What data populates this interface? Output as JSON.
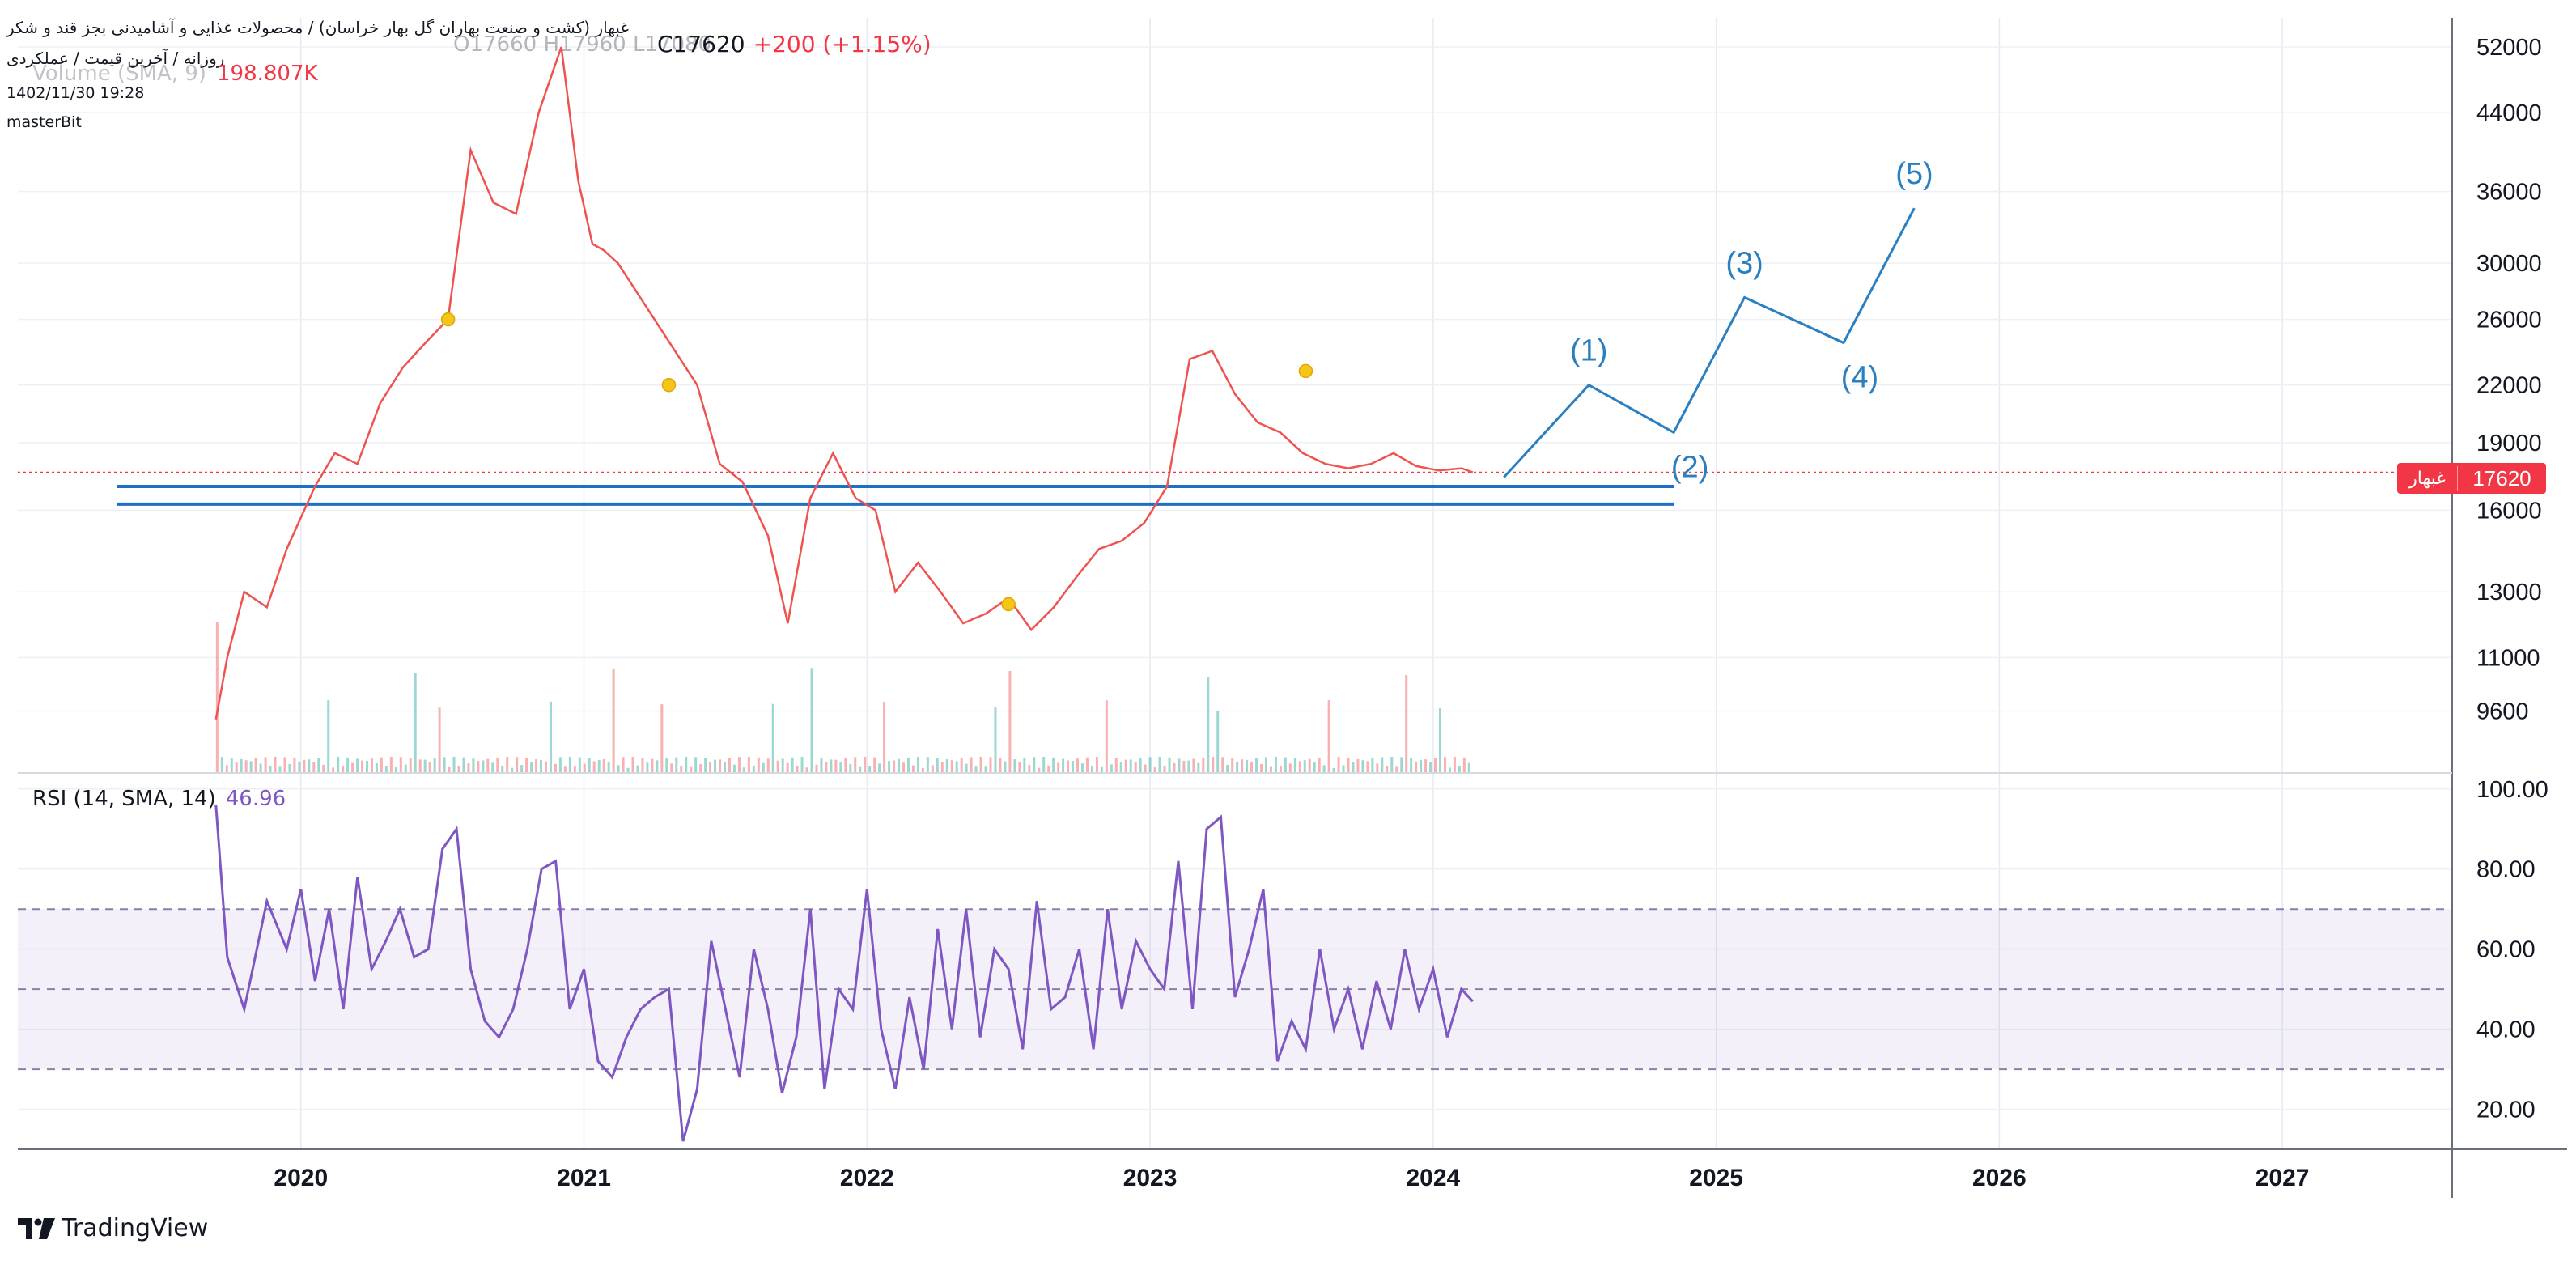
{
  "header": {
    "title": "غبهار (کشت و صنعت بهاران گل بهار خراسان) / محصولات غذایی و آشامیدنی بجز قند و شکر",
    "subtitle": "روزانه / آخرین قیمت / عملکردی",
    "datetime": "1402/11/30 19:28",
    "author": "masterBit",
    "ohlc_ghost": "O17660  H17960  L17080",
    "close_label": "C17620",
    "change": "+200 (+1.15%)",
    "volume_label": "Volume (SMA, 9)",
    "volume_value": "198.807K"
  },
  "price_tag": {
    "symbol": "غبهار",
    "value": "17620"
  },
  "rsi": {
    "label": "RSI (14, SMA, 14)",
    "value": "46.96"
  },
  "brand": {
    "name": "TradingView"
  },
  "colors": {
    "up": "#26a69a",
    "down": "#ef5350",
    "rsi": "#7e57c2",
    "wave": "#2a7fc1",
    "level": "#1e6fc6",
    "marker": "#f5c518",
    "price_line": "#f23645"
  },
  "chart_data": [
    {
      "type": "line",
      "title": "غبهار",
      "scale": "log",
      "x_ticks": [
        "2020",
        "2021",
        "2022",
        "2023",
        "2024",
        "2025",
        "2026",
        "2027"
      ],
      "y_ticks": [
        9600,
        11000,
        13000,
        16000,
        19000,
        22000,
        26000,
        30000,
        36000,
        44000,
        52000
      ],
      "ylim": [
        8200,
        56000
      ],
      "xlim": [
        2019.0,
        2027.6
      ],
      "series": [
        {
          "x": [
            2019.7,
            2019.74,
            2019.8,
            2019.88,
            2019.95,
            2020.05,
            2020.12,
            2020.2,
            2020.28,
            2020.36,
            2020.44,
            2020.52,
            2020.6,
            2020.68,
            2020.76,
            2020.84,
            2020.92,
            2020.98,
            2021.03,
            2021.07,
            2021.12,
            2021.4,
            2021.48,
            2021.56,
            2021.65,
            2021.72,
            2021.8,
            2021.88,
            2021.96,
            2022.03,
            2022.1,
            2022.18,
            2022.26,
            2022.34,
            2022.42,
            2022.5,
            2022.58,
            2022.66,
            2022.74,
            2022.82,
            2022.9,
            2022.98,
            2023.06,
            2023.14,
            2023.22,
            2023.3,
            2023.38,
            2023.46,
            2023.54,
            2023.62,
            2023.7,
            2023.78,
            2023.86,
            2023.94,
            2024.02,
            2024.1,
            2024.14
          ],
          "values": [
            9400,
            11000,
            13000,
            12500,
            14500,
            17000,
            18500,
            18000,
            21000,
            23000,
            24500,
            26000,
            40000,
            35000,
            34000,
            44000,
            52000,
            37000,
            31500,
            31000,
            30000,
            22000,
            18000,
            17200,
            15000,
            12000,
            16500,
            18500,
            16500,
            16000,
            13000,
            14000,
            13000,
            12000,
            12300,
            12800,
            11800,
            12500,
            13500,
            14500,
            14800,
            15500,
            17000,
            23500,
            24000,
            21500,
            20000,
            19500,
            18500,
            18000,
            17800,
            18000,
            18500,
            17900,
            17700,
            17800,
            17620
          ]
        }
      ],
      "annotations": {
        "wave_labels": [
          "(1)",
          "(2)",
          "(3)",
          "(4)",
          "(5)"
        ],
        "wave_points": [
          [
            2024.25,
            17400
          ],
          [
            2024.55,
            22000
          ],
          [
            2024.85,
            19500
          ],
          [
            2025.1,
            27500
          ],
          [
            2025.45,
            24500
          ],
          [
            2025.7,
            34500
          ]
        ],
        "support_levels": [
          17000,
          16250
        ],
        "support_x_range": [
          2019.35,
          2024.85
        ],
        "markers": [
          [
            2020.52,
            26000
          ],
          [
            2021.3,
            22000
          ],
          [
            2022.5,
            12600
          ],
          [
            2023.55,
            22800
          ]
        ],
        "last_price": 17620
      }
    },
    {
      "type": "line",
      "title": "RSI (14, SMA, 14)",
      "y_ticks": [
        20,
        40,
        60,
        80,
        100
      ],
      "ylim": [
        10,
        104
      ],
      "bands": [
        30,
        50,
        70
      ],
      "series": [
        {
          "name": "RSI",
          "x": [
            2019.7,
            2019.74,
            2019.8,
            2019.88,
            2019.95,
            2020.0,
            2020.05,
            2020.1,
            2020.15,
            2020.2,
            2020.25,
            2020.3,
            2020.35,
            2020.4,
            2020.45,
            2020.5,
            2020.55,
            2020.6,
            2020.65,
            2020.7,
            2020.75,
            2020.8,
            2020.85,
            2020.9,
            2020.95,
            2021.0,
            2021.05,
            2021.1,
            2021.15,
            2021.2,
            2021.25,
            2021.3,
            2021.35,
            2021.4,
            2021.45,
            2021.5,
            2021.55,
            2021.6,
            2021.65,
            2021.7,
            2021.75,
            2021.8,
            2021.85,
            2021.9,
            2021.95,
            2022.0,
            2022.05,
            2022.1,
            2022.15,
            2022.2,
            2022.25,
            2022.3,
            2022.35,
            2022.4,
            2022.45,
            2022.5,
            2022.55,
            2022.6,
            2022.65,
            2022.7,
            2022.75,
            2022.8,
            2022.85,
            2022.9,
            2022.95,
            2023.0,
            2023.05,
            2023.1,
            2023.15,
            2023.2,
            2023.25,
            2023.3,
            2023.35,
            2023.4,
            2023.45,
            2023.5,
            2023.55,
            2023.6,
            2023.65,
            2023.7,
            2023.75,
            2023.8,
            2023.85,
            2023.9,
            2023.95,
            2024.0,
            2024.05,
            2024.1,
            2024.14
          ],
          "values": [
            96,
            58,
            45,
            72,
            60,
            75,
            52,
            70,
            45,
            78,
            55,
            62,
            70,
            58,
            60,
            85,
            90,
            55,
            42,
            38,
            45,
            60,
            80,
            82,
            45,
            55,
            32,
            28,
            38,
            45,
            48,
            50,
            12,
            25,
            62,
            45,
            28,
            60,
            45,
            24,
            38,
            70,
            25,
            50,
            45,
            75,
            40,
            25,
            48,
            30,
            65,
            40,
            70,
            38,
            60,
            55,
            35,
            72,
            45,
            48,
            60,
            35,
            70,
            45,
            62,
            55,
            50,
            82,
            45,
            90,
            93,
            48,
            60,
            75,
            32,
            42,
            35,
            60,
            40,
            50,
            35,
            52,
            40,
            60,
            45,
            55,
            38,
            50,
            46.96
          ]
        }
      ]
    }
  ]
}
